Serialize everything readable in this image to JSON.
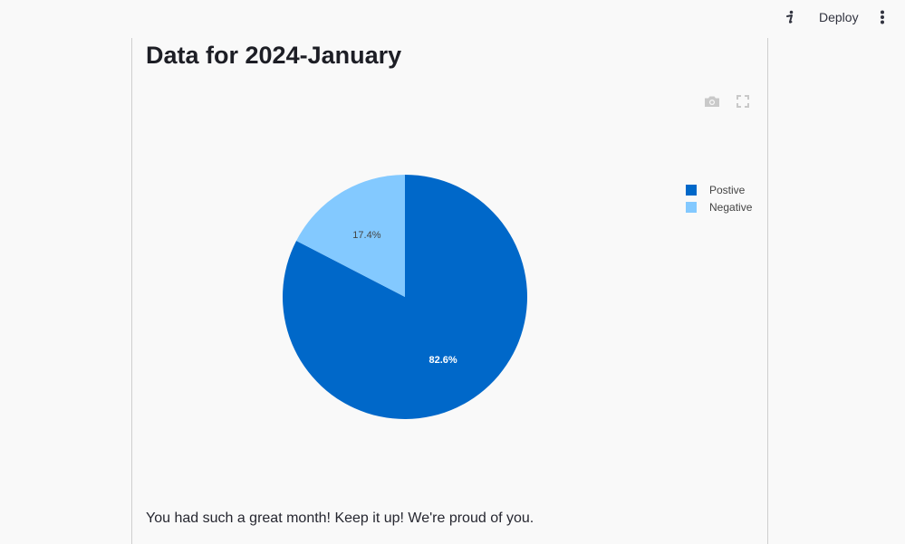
{
  "topbar": {
    "deploy_label": "Deploy",
    "info_icon": "info-icon",
    "menu_icon": "kebab-menu-icon"
  },
  "page": {
    "title": "Data for 2024-January",
    "message": "You had such a great month! Keep it up! We're proud of you."
  },
  "modebar": {
    "tools": [
      "camera-icon",
      "fullscreen-icon"
    ]
  },
  "chart_data": {
    "type": "pie",
    "title": "",
    "labels": [
      "Postive",
      "Negative"
    ],
    "values": [
      82.6,
      17.4
    ],
    "value_labels": [
      "82.6%",
      "17.4%"
    ],
    "colors": [
      "#0068c9",
      "#83c9ff"
    ],
    "label_colors": [
      "#ffffff",
      "#444444"
    ],
    "legend_position": "right"
  }
}
